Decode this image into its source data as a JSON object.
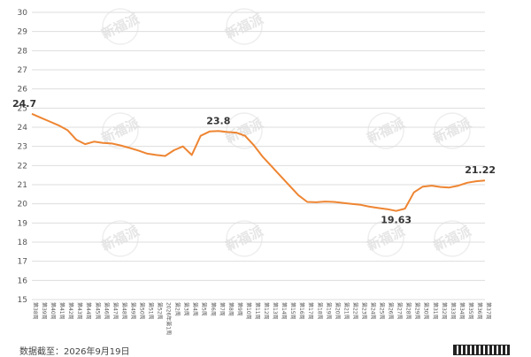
{
  "chart_data": {
    "type": "line",
    "color": "#ee8532",
    "grid": true,
    "ylim": [
      15,
      30
    ],
    "yticks": [
      15,
      16,
      17,
      18,
      19,
      20,
      21,
      22,
      23,
      24,
      25,
      26,
      27,
      28,
      29,
      30
    ],
    "categories": [
      "第38周",
      "第39周",
      "第40周",
      "第41周",
      "第42周",
      "第43周",
      "第44周",
      "第45周",
      "第46周",
      "第47周",
      "第48周",
      "第49周",
      "第50周",
      "第51周",
      "第52周",
      "2026年第1周",
      "第2周",
      "第3周",
      "第4周",
      "第5周",
      "第6周",
      "第7周",
      "第8周",
      "第9周",
      "第10周",
      "第11周",
      "第12周",
      "第13周",
      "第14周",
      "第15周",
      "第16周",
      "第17周",
      "第18周",
      "第19周",
      "第20周",
      "第21周",
      "第22周",
      "第23周",
      "第24周",
      "第25周",
      "第26周",
      "第27周",
      "第28周",
      "第29周",
      "第30周",
      "第31周",
      "第32周",
      "第33周",
      "第34周",
      "第35周",
      "第36周",
      "第37周"
    ],
    "values": [
      24.7,
      24.5,
      24.3,
      24.1,
      23.85,
      23.35,
      23.12,
      23.25,
      23.18,
      23.15,
      23.05,
      22.92,
      22.78,
      22.62,
      22.55,
      22.5,
      22.8,
      23.0,
      22.55,
      23.55,
      23.78,
      23.8,
      23.75,
      23.72,
      23.55,
      23.05,
      22.45,
      21.95,
      21.45,
      20.95,
      20.45,
      20.1,
      20.08,
      20.12,
      20.1,
      20.05,
      20.0,
      19.95,
      19.85,
      19.78,
      19.72,
      19.63,
      19.75,
      20.6,
      20.9,
      20.95,
      20.88,
      20.85,
      20.95,
      21.1,
      21.18,
      21.22
    ],
    "data_labels": [
      {
        "index": 0,
        "text": "24.7"
      },
      {
        "index": 21,
        "text": "23.8"
      },
      {
        "index": 41,
        "text": "19.63"
      },
      {
        "index": 51,
        "text": "21.22"
      }
    ],
    "watermark": "新福派"
  },
  "footer": {
    "source": "数据截至：2026年9月19日"
  }
}
